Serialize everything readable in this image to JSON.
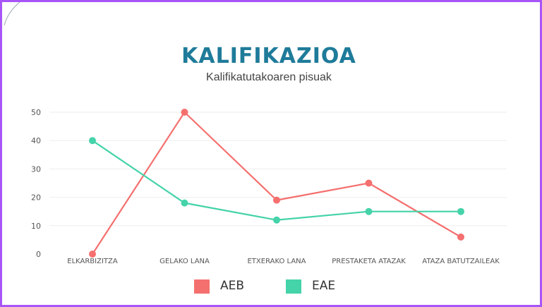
{
  "chart_data": {
    "type": "line",
    "title": "KALIFIKAZIOA",
    "subtitle": "Kalifikatutakoaren pisuak",
    "categories": [
      "ELKARBIZITZA",
      "GELAKO LANA",
      "ETXERAKO LANA",
      "PRESTAKETA ATAZAK",
      "ATAZA BATUTZAILEAK"
    ],
    "series": [
      {
        "name": "AEB",
        "color": "#f4706f",
        "values": [
          0,
          50,
          19,
          25,
          6
        ]
      },
      {
        "name": "EAE",
        "color": "#45d3a9",
        "values": [
          40,
          18,
          12,
          15,
          15
        ]
      }
    ],
    "ylim": [
      0,
      50
    ],
    "yticks": [
      0,
      10,
      20,
      30,
      40,
      50
    ],
    "grid": true,
    "legend": "bottom-center",
    "xlabel": "",
    "ylabel": ""
  },
  "colors": {
    "frame_border": "#a855f7",
    "title": "#1f7b9a",
    "grid": "#eeeeee"
  }
}
